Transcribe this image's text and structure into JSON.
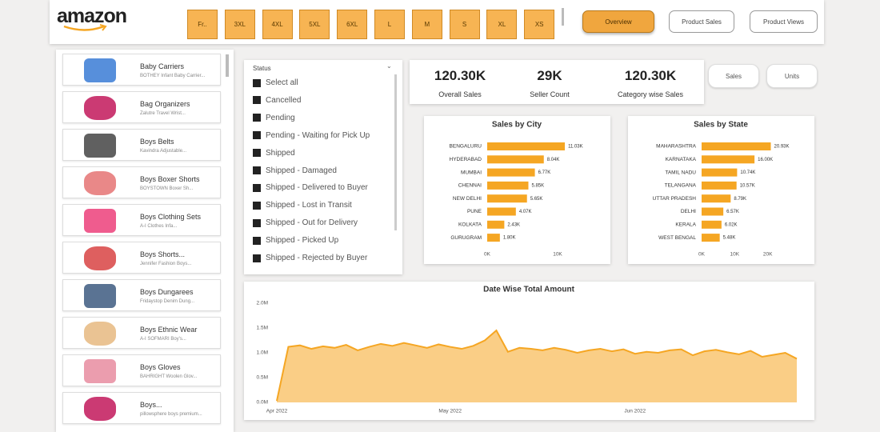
{
  "header": {
    "logo": "amazon",
    "sizes": [
      "Fr..",
      "3XL",
      "4XL",
      "5XL",
      "6XL",
      "L",
      "M",
      "S",
      "XL",
      "XS"
    ],
    "buttons": [
      "Overview",
      "Product Sales",
      "Product Views"
    ]
  },
  "products": [
    {
      "name": "Baby Carriers",
      "desc": "BOTHEY Infant Baby Carrier..."
    },
    {
      "name": "Bag Organizers",
      "desc": "Zalutre Travel Wrist..."
    },
    {
      "name": "Boys Belts",
      "desc": "Kavindra Adjustable..."
    },
    {
      "name": "Boys Boxer Shorts",
      "desc": "BOYSTOWN Boxer Sh..."
    },
    {
      "name": "Boys Clothing Sets",
      "desc": "A-I Clothes Infa..."
    },
    {
      "name": "Boys Shorts...",
      "desc": "Jennifer Fashion Boys..."
    },
    {
      "name": "Boys Dungarees",
      "desc": "Fridaystop Denim Dung..."
    },
    {
      "name": "Boys Ethnic Wear",
      "desc": "A-I SOFMARI Boy's..."
    },
    {
      "name": "Boys Gloves",
      "desc": "BAHRIGHT Woolen Glov..."
    },
    {
      "name": "Boys...",
      "desc": "pillowsphere boys premium..."
    }
  ],
  "status_filter": {
    "title": "Status",
    "options": [
      "Select all",
      "Cancelled",
      "Pending",
      "Pending - Waiting for Pick Up",
      "Shipped",
      "Shipped - Damaged",
      "Shipped - Delivered to Buyer",
      "Shipped - Lost in Transit",
      "Shipped - Out for Delivery",
      "Shipped - Picked Up",
      "Shipped - Rejected by Buyer"
    ]
  },
  "kpis": [
    {
      "value": "120.30K",
      "label": "Overall Sales"
    },
    {
      "value": "29K",
      "label": "Seller Count"
    },
    {
      "value": "120.30K",
      "label": "Category wise Sales"
    }
  ],
  "toggles": [
    "Sales",
    "Units"
  ],
  "chart_data": [
    {
      "type": "bar",
      "orientation": "horizontal",
      "title": "Sales by City",
      "color": "#f5a623",
      "categories": [
        "BENGALURU",
        "HYDERABAD",
        "MUMBAI",
        "CHENNAI",
        "NEW DELHI",
        "PUNE",
        "KOLKATA",
        "GURUGRAM"
      ],
      "values": [
        11030,
        8040,
        6770,
        5850,
        5650,
        4070,
        2430,
        1800
      ],
      "value_labels": [
        "11.03K",
        "8.04K",
        "6.77K",
        "5.85K",
        "5.65K",
        "4.07K",
        "2.43K",
        "1.80K"
      ],
      "xlim": [
        0,
        15000
      ],
      "xticks": [
        {
          "value": 0,
          "label": "0K"
        },
        {
          "value": 10000,
          "label": "10K"
        }
      ]
    },
    {
      "type": "bar",
      "orientation": "horizontal",
      "title": "Sales by State",
      "color": "#f5a623",
      "categories": [
        "MAHARASHTRA",
        "KARNATAKA",
        "TAMIL NADU",
        "TELANGANA",
        "UTTAR PRADESH",
        "DELHI",
        "KERALA",
        "WEST BENGAL"
      ],
      "values": [
        20930,
        16000,
        10740,
        10570,
        8790,
        6570,
        6020,
        5480
      ],
      "value_labels": [
        "20.93K",
        "16.00K",
        "10.74K",
        "10.57K",
        "8.79K",
        "6.57K",
        "6.02K",
        "5.48K"
      ],
      "xlim": [
        0,
        30000
      ],
      "xticks": [
        {
          "value": 0,
          "label": "0K"
        },
        {
          "value": 10000,
          "label": "10K"
        },
        {
          "value": 20000,
          "label": "20K"
        }
      ]
    },
    {
      "type": "area",
      "title": "Date Wise Total Amount",
      "color": "#f5a623",
      "categories": [
        "Apr 2022",
        null,
        null,
        null,
        null,
        null,
        null,
        null,
        null,
        null,
        null,
        null,
        null,
        null,
        null,
        "May 2022",
        null,
        null,
        null,
        null,
        null,
        null,
        null,
        null,
        null,
        null,
        null,
        null,
        null,
        null,
        null,
        "Jun 2022",
        null,
        null,
        null,
        null,
        null,
        null,
        null,
        null,
        null,
        null,
        null,
        null,
        null,
        null
      ],
      "values": [
        30000,
        1120000,
        1150000,
        1080000,
        1130000,
        1100000,
        1160000,
        1050000,
        1120000,
        1180000,
        1140000,
        1200000,
        1150000,
        1100000,
        1170000,
        1120000,
        1080000,
        1140000,
        1250000,
        1450000,
        1020000,
        1100000,
        1080000,
        1050000,
        1100000,
        1060000,
        1000000,
        1050000,
        1080000,
        1030000,
        1070000,
        980000,
        1020000,
        1000000,
        1050000,
        1070000,
        950000,
        1030000,
        1060000,
        1010000,
        970000,
        1040000,
        920000,
        960000,
        1000000,
        880000
      ],
      "ylim": [
        0,
        2000000
      ],
      "yticks": [
        {
          "value": 0,
          "label": "0.0M"
        },
        {
          "value": 500000,
          "label": "0.5M"
        },
        {
          "value": 1000000,
          "label": "1.0M"
        },
        {
          "value": 1500000,
          "label": "1.5M"
        },
        {
          "value": 2000000,
          "label": "2.0M"
        }
      ]
    }
  ]
}
